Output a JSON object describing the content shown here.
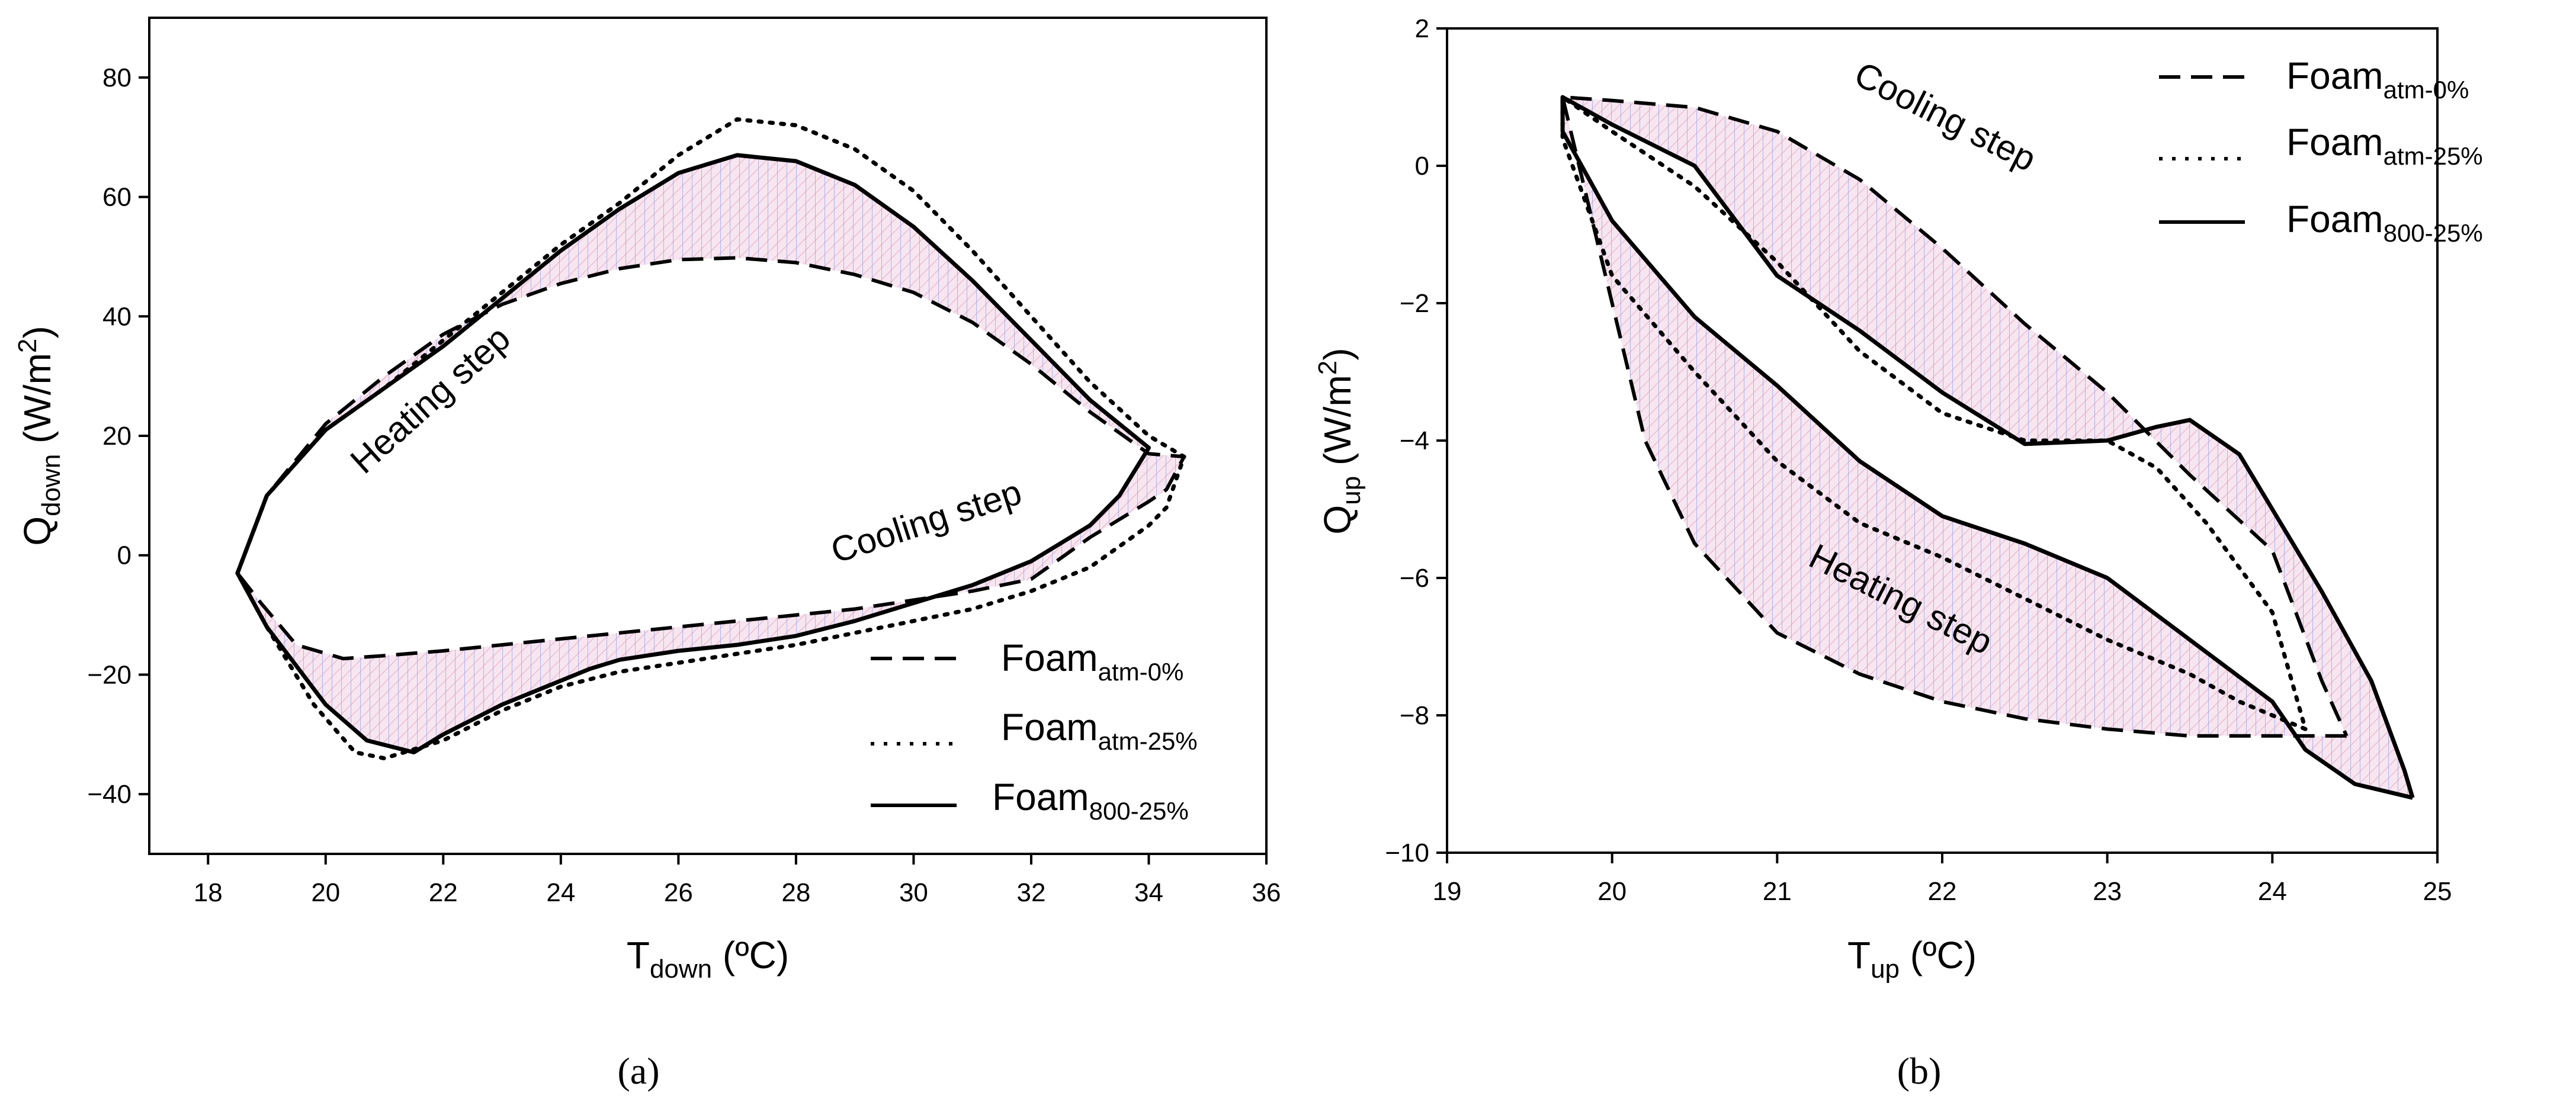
{
  "figure": {
    "panel_a_label": "(a)",
    "panel_b_label": "(b)"
  },
  "chart_data": [
    {
      "type": "line",
      "panel": "(a)",
      "title": "",
      "xlabel": {
        "main": "T",
        "sub": "down",
        "unit": " (ºC)"
      },
      "ylabel": {
        "main": "Q",
        "sub": "down",
        "unit": " (W/m",
        "sup": "2",
        "close": ")"
      },
      "xlim": [
        17,
        36
      ],
      "ylim": [
        -50,
        90
      ],
      "xticks": [
        18,
        20,
        22,
        24,
        26,
        28,
        30,
        32,
        34,
        36
      ],
      "yticks": [
        -40,
        -20,
        0,
        20,
        40,
        60,
        80
      ],
      "legend_position": "bottom-right",
      "annotations": [
        {
          "text": "Heating step",
          "x": 22.6,
          "y": 19,
          "angle_deg": -42
        },
        {
          "text": "Cooling step",
          "x": 28.9,
          "y": 0.5,
          "angle_deg": -18
        }
      ],
      "series": [
        {
          "name": "Foam",
          "name_sub": "atm-0%",
          "style": "dashed",
          "heating": [
            [
              18.5,
              -3
            ],
            [
              19,
              10
            ],
            [
              20,
              22
            ],
            [
              21,
              30
            ],
            [
              22,
              37
            ],
            [
              23,
              42
            ],
            [
              24,
              45.5
            ],
            [
              25,
              48
            ],
            [
              26,
              49.5
            ],
            [
              27,
              49.8
            ],
            [
              28,
              49
            ],
            [
              29,
              47
            ],
            [
              30,
              44
            ],
            [
              31,
              39
            ],
            [
              32,
              32
            ],
            [
              33,
              24
            ],
            [
              34,
              17
            ],
            [
              34.6,
              16.5
            ]
          ],
          "cooling": [
            [
              34.6,
              16.5
            ],
            [
              34.3,
              11
            ],
            [
              34,
              9
            ],
            [
              33,
              3
            ],
            [
              32,
              -4
            ],
            [
              31,
              -6
            ],
            [
              30,
              -7.5
            ],
            [
              29,
              -9
            ],
            [
              28,
              -10
            ],
            [
              27,
              -11
            ],
            [
              26,
              -12
            ],
            [
              25,
              -13
            ],
            [
              24,
              -14
            ],
            [
              23,
              -15
            ],
            [
              22,
              -16
            ],
            [
              21,
              -16.8
            ],
            [
              20.3,
              -17.3
            ],
            [
              19.5,
              -15
            ],
            [
              18.9,
              -8
            ],
            [
              18.5,
              -3
            ]
          ]
        },
        {
          "name": "Foam",
          "name_sub": "atm-25%",
          "style": "dotted",
          "heating": [
            [
              18.5,
              -3
            ],
            [
              19,
              10
            ],
            [
              20,
              21
            ],
            [
              21,
              28
            ],
            [
              22,
              36
            ],
            [
              23,
              44
            ],
            [
              24,
              52
            ],
            [
              25,
              59
            ],
            [
              26,
              67
            ],
            [
              27,
              73
            ],
            [
              28,
              72
            ],
            [
              29,
              68
            ],
            [
              30,
              61
            ],
            [
              31,
              51
            ],
            [
              32,
              40
            ],
            [
              33,
              29
            ],
            [
              34,
              20
            ],
            [
              34.6,
              16.5
            ]
          ],
          "cooling": [
            [
              34.6,
              16.5
            ],
            [
              34.3,
              8
            ],
            [
              34,
              5
            ],
            [
              33,
              -2
            ],
            [
              32,
              -6
            ],
            [
              31,
              -9
            ],
            [
              30,
              -11
            ],
            [
              29,
              -13
            ],
            [
              28,
              -15
            ],
            [
              27,
              -16.5
            ],
            [
              26,
              -18
            ],
            [
              25,
              -19.5
            ],
            [
              24,
              -22
            ],
            [
              23,
              -26
            ],
            [
              22,
              -31
            ],
            [
              21,
              -34
            ],
            [
              20.5,
              -33
            ],
            [
              19.8,
              -25
            ],
            [
              19,
              -12
            ],
            [
              18.5,
              -3
            ]
          ]
        },
        {
          "name": "Foam",
          "name_sub": "800-25%",
          "style": "solid",
          "heating": [
            [
              18.5,
              -3
            ],
            [
              19,
              10
            ],
            [
              20,
              21
            ],
            [
              21,
              28
            ],
            [
              22,
              35
            ],
            [
              23,
              43
            ],
            [
              24,
              51
            ],
            [
              25,
              58
            ],
            [
              26,
              64
            ],
            [
              27,
              67
            ],
            [
              28,
              66
            ],
            [
              29,
              62
            ],
            [
              30,
              55
            ],
            [
              31,
              46
            ],
            [
              32,
              36
            ],
            [
              33,
              26
            ],
            [
              34,
              18
            ]
          ],
          "cooling": [
            [
              34,
              18
            ],
            [
              33.5,
              10
            ],
            [
              33,
              5
            ],
            [
              32,
              -1
            ],
            [
              31,
              -5
            ],
            [
              30,
              -8
            ],
            [
              29,
              -11
            ],
            [
              28,
              -13.5
            ],
            [
              27,
              -15
            ],
            [
              26,
              -16
            ],
            [
              25,
              -17.5
            ],
            [
              24.5,
              -19
            ],
            [
              24,
              -21
            ],
            [
              23,
              -25
            ],
            [
              22,
              -30
            ],
            [
              21.5,
              -33
            ],
            [
              20.7,
              -31
            ],
            [
              20,
              -25
            ],
            [
              19,
              -12
            ],
            [
              18.5,
              -3
            ]
          ]
        }
      ]
    },
    {
      "type": "line",
      "panel": "(b)",
      "title": "",
      "xlabel": {
        "main": "T",
        "sub": "up",
        "unit": " (ºC)"
      },
      "ylabel": {
        "main": "Q",
        "sub": "up",
        "unit": " (W/m",
        "sup": "2",
        "close": ")"
      },
      "xlim": [
        19,
        25
      ],
      "ylim": [
        -10,
        2
      ],
      "xticks": [
        19,
        20,
        21,
        22,
        23,
        24,
        25
      ],
      "yticks": [
        -10,
        -8,
        -6,
        -4,
        -2,
        0,
        2
      ],
      "legend_position": "top-right",
      "annotations": [
        {
          "text": "Cooling step",
          "x": 21.6,
          "y": 0.6,
          "angle_deg": 27
        },
        {
          "text": "Heating step",
          "x": 21.05,
          "y": -7.3,
          "angle_deg": 27
        }
      ],
      "series": [
        {
          "name": "Foam",
          "name_sub": "atm-0%",
          "style": "dashed",
          "cooling": [
            [
              19.7,
              1
            ],
            [
              20,
              0.95
            ],
            [
              20.5,
              0.85
            ],
            [
              21,
              0.5
            ],
            [
              21.5,
              -0.2
            ],
            [
              22,
              -1.2
            ],
            [
              22.5,
              -2.3
            ],
            [
              23,
              -3.3
            ],
            [
              23.5,
              -4.5
            ],
            [
              24,
              -5.6
            ],
            [
              24.3,
              -7.5
            ],
            [
              24.45,
              -8.3
            ]
          ],
          "heating": [
            [
              24.45,
              -8.3
            ],
            [
              24,
              -8.3
            ],
            [
              23.5,
              -8.3
            ],
            [
              23,
              -8.2
            ],
            [
              22.5,
              -8.05
            ],
            [
              22,
              -7.8
            ],
            [
              21.5,
              -7.4
            ],
            [
              21,
              -6.8
            ],
            [
              20.5,
              -5.5
            ],
            [
              20.2,
              -4
            ],
            [
              20,
              -2
            ],
            [
              19.8,
              0
            ],
            [
              19.7,
              1
            ]
          ]
        },
        {
          "name": "Foam",
          "name_sub": "atm-25%",
          "style": "dotted",
          "cooling": [
            [
              19.7,
              1
            ],
            [
              20,
              0.5
            ],
            [
              20.5,
              -0.3
            ],
            [
              21,
              -1.4
            ],
            [
              21.5,
              -2.7
            ],
            [
              22,
              -3.6
            ],
            [
              22.5,
              -4
            ],
            [
              23,
              -4
            ],
            [
              23.3,
              -4.4
            ],
            [
              23.6,
              -5.2
            ],
            [
              24,
              -6.5
            ],
            [
              24.2,
              -8.2
            ]
          ],
          "heating": [
            [
              24.2,
              -8.2
            ],
            [
              23.8,
              -7.8
            ],
            [
              23.5,
              -7.4
            ],
            [
              23,
              -6.9
            ],
            [
              22.5,
              -6.3
            ],
            [
              22,
              -5.7
            ],
            [
              21.5,
              -5.2
            ],
            [
              21,
              -4.3
            ],
            [
              20.5,
              -3
            ],
            [
              20,
              -1.6
            ],
            [
              19.7,
              0.4
            ],
            [
              19.7,
              1
            ]
          ]
        },
        {
          "name": "Foam",
          "name_sub": "800-25%",
          "style": "solid",
          "cooling": [
            [
              19.7,
              1
            ],
            [
              20,
              0.6
            ],
            [
              20.5,
              0
            ],
            [
              21,
              -1.6
            ],
            [
              21.5,
              -2.4
            ],
            [
              22,
              -3.3
            ],
            [
              22.5,
              -4.05
            ],
            [
              23,
              -4.0
            ],
            [
              23.3,
              -3.8
            ],
            [
              23.5,
              -3.7
            ],
            [
              23.8,
              -4.2
            ],
            [
              24,
              -5
            ],
            [
              24.3,
              -6.2
            ],
            [
              24.6,
              -7.5
            ],
            [
              24.8,
              -8.8
            ],
            [
              24.85,
              -9.2
            ]
          ],
          "heating": [
            [
              24.85,
              -9.2
            ],
            [
              24.5,
              -9.0
            ],
            [
              24.2,
              -8.5
            ],
            [
              24,
              -7.8
            ],
            [
              23.5,
              -6.9
            ],
            [
              23,
              -6
            ],
            [
              22.5,
              -5.5
            ],
            [
              22,
              -5.1
            ],
            [
              21.5,
              -4.3
            ],
            [
              21,
              -3.2
            ],
            [
              20.5,
              -2.2
            ],
            [
              20,
              -0.8
            ],
            [
              19.7,
              0.5
            ],
            [
              19.7,
              1
            ]
          ]
        }
      ]
    }
  ]
}
